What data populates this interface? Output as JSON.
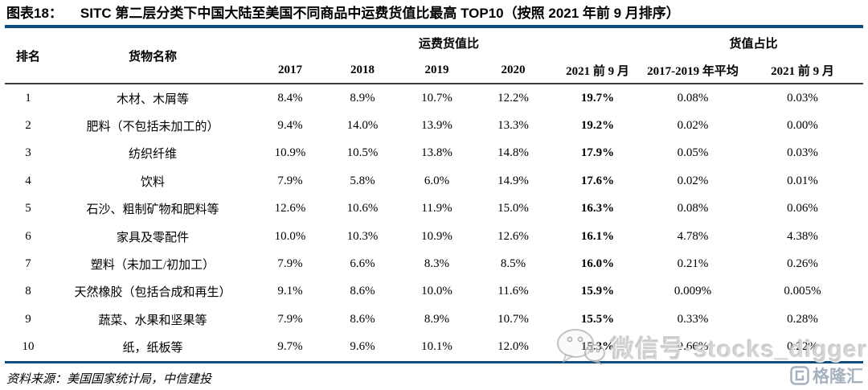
{
  "title": {
    "label": "图表18：",
    "text": "SITC 第二层分类下中国大陆至美国不同商品中运费货值比最高 TOP10（按照 2021 年前 9 月排序）"
  },
  "table": {
    "col_rank": "排名",
    "col_name": "货物名称",
    "group_freight": "运费货值比",
    "group_value": "货值占比",
    "sub_cols": [
      "2017",
      "2018",
      "2019",
      "2020",
      "2021 前 9 月",
      "2017-2019 年平均",
      "2021 前 9 月"
    ],
    "rows": [
      {
        "rank": "1",
        "name": "木材、木屑等",
        "y2017": "8.4%",
        "y2018": "8.9%",
        "y2019": "10.7%",
        "y2020": "12.2%",
        "y2021": "19.7%",
        "avg_2017_2019": "0.08%",
        "share_2021": "0.03%"
      },
      {
        "rank": "2",
        "name": "肥料（不包括未加工的）",
        "y2017": "9.4%",
        "y2018": "14.0%",
        "y2019": "13.9%",
        "y2020": "13.3%",
        "y2021": "19.2%",
        "avg_2017_2019": "0.02%",
        "share_2021": "0.00%"
      },
      {
        "rank": "3",
        "name": "纺织纤维",
        "y2017": "10.9%",
        "y2018": "10.5%",
        "y2019": "13.8%",
        "y2020": "14.8%",
        "y2021": "17.9%",
        "avg_2017_2019": "0.05%",
        "share_2021": "0.03%"
      },
      {
        "rank": "4",
        "name": "饮料",
        "y2017": "7.9%",
        "y2018": "5.8%",
        "y2019": "6.0%",
        "y2020": "14.9%",
        "y2021": "17.6%",
        "avg_2017_2019": "0.02%",
        "share_2021": "0.01%"
      },
      {
        "rank": "5",
        "name": "石沙、粗制矿物和肥料等",
        "y2017": "12.6%",
        "y2018": "10.6%",
        "y2019": "11.9%",
        "y2020": "15.0%",
        "y2021": "16.3%",
        "avg_2017_2019": "0.08%",
        "share_2021": "0.06%"
      },
      {
        "rank": "6",
        "name": "家具及零配件",
        "y2017": "10.0%",
        "y2018": "10.3%",
        "y2019": "10.9%",
        "y2020": "12.6%",
        "y2021": "16.1%",
        "avg_2017_2019": "4.78%",
        "share_2021": "4.38%"
      },
      {
        "rank": "7",
        "name": "塑料（未加工/初加工）",
        "y2017": "7.9%",
        "y2018": "6.6%",
        "y2019": "8.3%",
        "y2020": "8.5%",
        "y2021": "16.0%",
        "avg_2017_2019": "0.21%",
        "share_2021": "0.26%"
      },
      {
        "rank": "8",
        "name": "天然橡胶（包括合成和再生）",
        "y2017": "9.1%",
        "y2018": "8.6%",
        "y2019": "10.0%",
        "y2020": "11.6%",
        "y2021": "15.9%",
        "avg_2017_2019": "0.009%",
        "share_2021": "0.005%"
      },
      {
        "rank": "9",
        "name": "蔬菜、水果和坚果等",
        "y2017": "7.9%",
        "y2018": "8.6%",
        "y2019": "8.9%",
        "y2020": "10.7%",
        "y2021": "15.5%",
        "avg_2017_2019": "0.33%",
        "share_2021": "0.28%"
      },
      {
        "rank": "10",
        "name": "纸，纸板等",
        "y2017": "9.7%",
        "y2018": "9.6%",
        "y2019": "10.1%",
        "y2020": "12.0%",
        "y2021": "15.3%",
        "avg_2017_2019": "0.66%",
        "share_2021": "0.22%"
      }
    ]
  },
  "footer": {
    "source": "资料来源：美国国家统计局，中信建投"
  },
  "watermark": {
    "icon": "wechat-icon",
    "text": "微信号·stocks_digger"
  },
  "brand": {
    "icon": "gelonghui-icon",
    "text": "格隆汇"
  },
  "colors": {
    "rule_blue": "#0e4c7d",
    "header_divider": "#3a3a3a",
    "watermark_gray": "#bebebe",
    "brand_gray_blue": "#96a3b4"
  }
}
